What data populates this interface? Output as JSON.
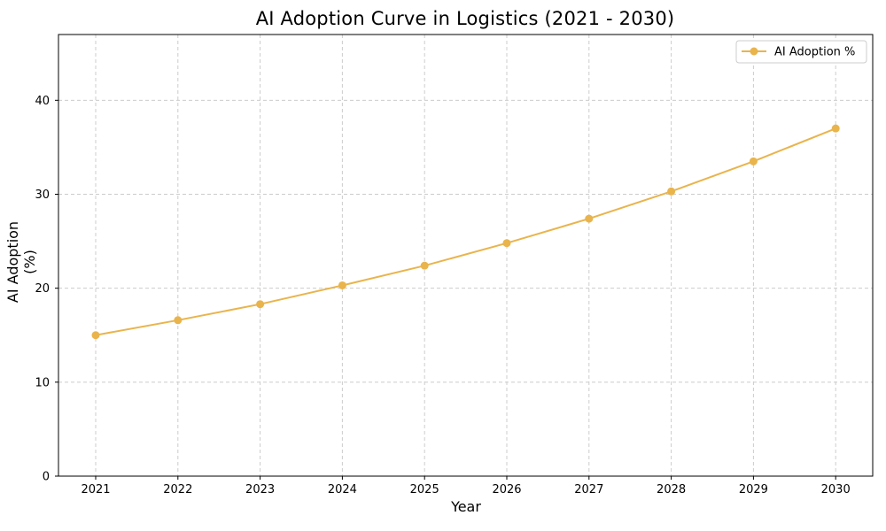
{
  "chart_data": {
    "type": "line",
    "title": "AI Adoption Curve in Logistics (2021 - 2030)",
    "xlabel": "Year",
    "ylabel": "AI Adoption (%)",
    "x": [
      "2021",
      "2022",
      "2023",
      "2024",
      "2025",
      "2026",
      "2027",
      "2028",
      "2029",
      "2030"
    ],
    "series": [
      {
        "name": "AI Adoption %",
        "values": [
          15.0,
          16.6,
          18.3,
          20.3,
          22.4,
          24.8,
          27.4,
          30.3,
          33.5,
          37.0
        ],
        "color": "#E9B44C"
      }
    ],
    "ylim": [
      0,
      47
    ],
    "yticks": [
      "0",
      "10",
      "20",
      "30",
      "40"
    ],
    "grid": true,
    "legend_position": "top-right"
  }
}
